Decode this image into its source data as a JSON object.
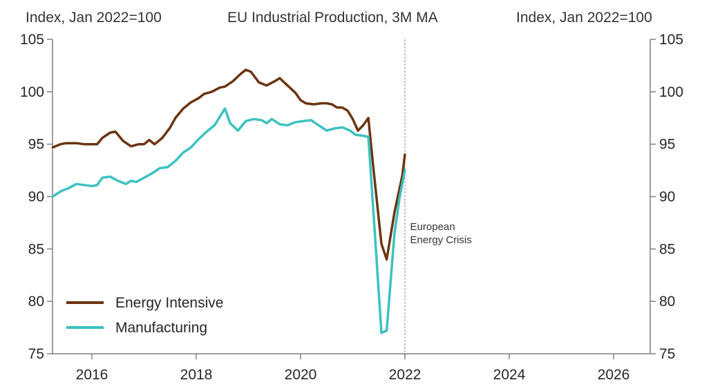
{
  "chart_data": {
    "type": "line",
    "title": "EU Industrial Production, 3M MA",
    "ylabel_left": "Index, Jan 2022=100",
    "ylabel_right": "Index, Jan 2022=100",
    "xlabel": "",
    "xlim": [
      2015.25,
      2026.75
    ],
    "ylim": [
      75,
      105
    ],
    "x_ticks": [
      2016,
      2018,
      2020,
      2022,
      2024,
      2026
    ],
    "x_tick_labels": [
      "2016",
      "2018",
      "2020",
      "2022",
      "2024",
      "2026"
    ],
    "y_ticks": [
      75,
      80,
      85,
      90,
      95,
      100,
      105
    ],
    "y_tick_labels": [
      "75",
      "80",
      "85",
      "90",
      "95",
      "100",
      "105"
    ],
    "grid": false,
    "legend_position": "bottom-left",
    "annotations": [
      {
        "type": "vline",
        "x": 2022.0,
        "style": "dashed"
      },
      {
        "type": "text",
        "x": 2022.1,
        "y": 86.8,
        "lines": [
          "European",
          "Energy Crisis"
        ]
      }
    ],
    "series": [
      {
        "name": "Energy Intensive",
        "color": "#6B3410",
        "points": [
          [
            2015.25,
            94.7
          ],
          [
            2015.4,
            95.0
          ],
          [
            2015.5,
            95.1
          ],
          [
            2015.7,
            95.1
          ],
          [
            2015.85,
            95.0
          ],
          [
            2016.0,
            95.0
          ],
          [
            2016.1,
            95.0
          ],
          [
            2016.2,
            95.6
          ],
          [
            2016.35,
            96.1
          ],
          [
            2016.45,
            96.2
          ],
          [
            2016.6,
            95.3
          ],
          [
            2016.75,
            94.8
          ],
          [
            2016.9,
            95.0
          ],
          [
            2017.0,
            95.0
          ],
          [
            2017.1,
            95.4
          ],
          [
            2017.2,
            95.0
          ],
          [
            2017.35,
            95.6
          ],
          [
            2017.5,
            96.6
          ],
          [
            2017.6,
            97.5
          ],
          [
            2017.75,
            98.4
          ],
          [
            2017.9,
            99.0
          ],
          [
            2018.05,
            99.4
          ],
          [
            2018.15,
            99.8
          ],
          [
            2018.3,
            100.0
          ],
          [
            2018.45,
            100.4
          ],
          [
            2018.55,
            100.5
          ],
          [
            2018.7,
            101.0
          ],
          [
            2018.85,
            101.7
          ],
          [
            2018.95,
            102.1
          ],
          [
            2019.05,
            101.9
          ],
          [
            2019.2,
            100.9
          ],
          [
            2019.35,
            100.6
          ],
          [
            2019.5,
            101.0
          ],
          [
            2019.6,
            101.3
          ],
          [
            2019.75,
            100.6
          ],
          [
            2019.9,
            99.9
          ],
          [
            2020.0,
            99.2
          ],
          [
            2020.1,
            98.9
          ],
          [
            2020.25,
            98.8
          ],
          [
            2020.4,
            98.9
          ],
          [
            2020.5,
            98.9
          ],
          [
            2020.6,
            98.8
          ],
          [
            2020.7,
            98.5
          ],
          [
            2020.8,
            98.5
          ],
          [
            2020.9,
            98.2
          ],
          [
            2021.0,
            97.4
          ],
          [
            2021.1,
            96.3
          ],
          [
            2021.2,
            96.8
          ],
          [
            2021.3,
            97.5
          ],
          [
            2021.4,
            92.5
          ],
          [
            2021.55,
            85.5
          ],
          [
            2021.65,
            84.0
          ],
          [
            2021.8,
            88.5
          ],
          [
            2021.95,
            92.0
          ],
          [
            2022.0,
            94.0
          ]
        ]
      },
      {
        "name": "Manufacturing",
        "color": "#3CC1C1",
        "points": [
          [
            2015.25,
            90.0
          ],
          [
            2015.4,
            90.5
          ],
          [
            2015.55,
            90.8
          ],
          [
            2015.7,
            91.2
          ],
          [
            2015.85,
            91.1
          ],
          [
            2016.0,
            91.0
          ],
          [
            2016.1,
            91.1
          ],
          [
            2016.2,
            91.8
          ],
          [
            2016.35,
            91.9
          ],
          [
            2016.5,
            91.5
          ],
          [
            2016.65,
            91.2
          ],
          [
            2016.75,
            91.5
          ],
          [
            2016.85,
            91.4
          ],
          [
            2017.0,
            91.8
          ],
          [
            2017.15,
            92.2
          ],
          [
            2017.3,
            92.7
          ],
          [
            2017.45,
            92.8
          ],
          [
            2017.6,
            93.4
          ],
          [
            2017.75,
            94.2
          ],
          [
            2017.9,
            94.7
          ],
          [
            2018.05,
            95.5
          ],
          [
            2018.2,
            96.2
          ],
          [
            2018.35,
            96.8
          ],
          [
            2018.45,
            97.6
          ],
          [
            2018.55,
            98.4
          ],
          [
            2018.65,
            97.0
          ],
          [
            2018.8,
            96.3
          ],
          [
            2018.95,
            97.2
          ],
          [
            2019.1,
            97.4
          ],
          [
            2019.25,
            97.3
          ],
          [
            2019.35,
            97.0
          ],
          [
            2019.45,
            97.4
          ],
          [
            2019.6,
            96.9
          ],
          [
            2019.75,
            96.8
          ],
          [
            2019.9,
            97.1
          ],
          [
            2020.05,
            97.2
          ],
          [
            2020.2,
            97.3
          ],
          [
            2020.35,
            96.8
          ],
          [
            2020.5,
            96.3
          ],
          [
            2020.65,
            96.5
          ],
          [
            2020.8,
            96.6
          ],
          [
            2020.95,
            96.3
          ],
          [
            2021.05,
            95.9
          ],
          [
            2021.2,
            95.8
          ],
          [
            2021.3,
            95.7
          ],
          [
            2021.45,
            84.5
          ],
          [
            2021.55,
            77.0
          ],
          [
            2021.65,
            77.2
          ],
          [
            2021.8,
            86.5
          ],
          [
            2021.9,
            90.0
          ],
          [
            2022.0,
            92.5
          ]
        ]
      }
    ]
  }
}
